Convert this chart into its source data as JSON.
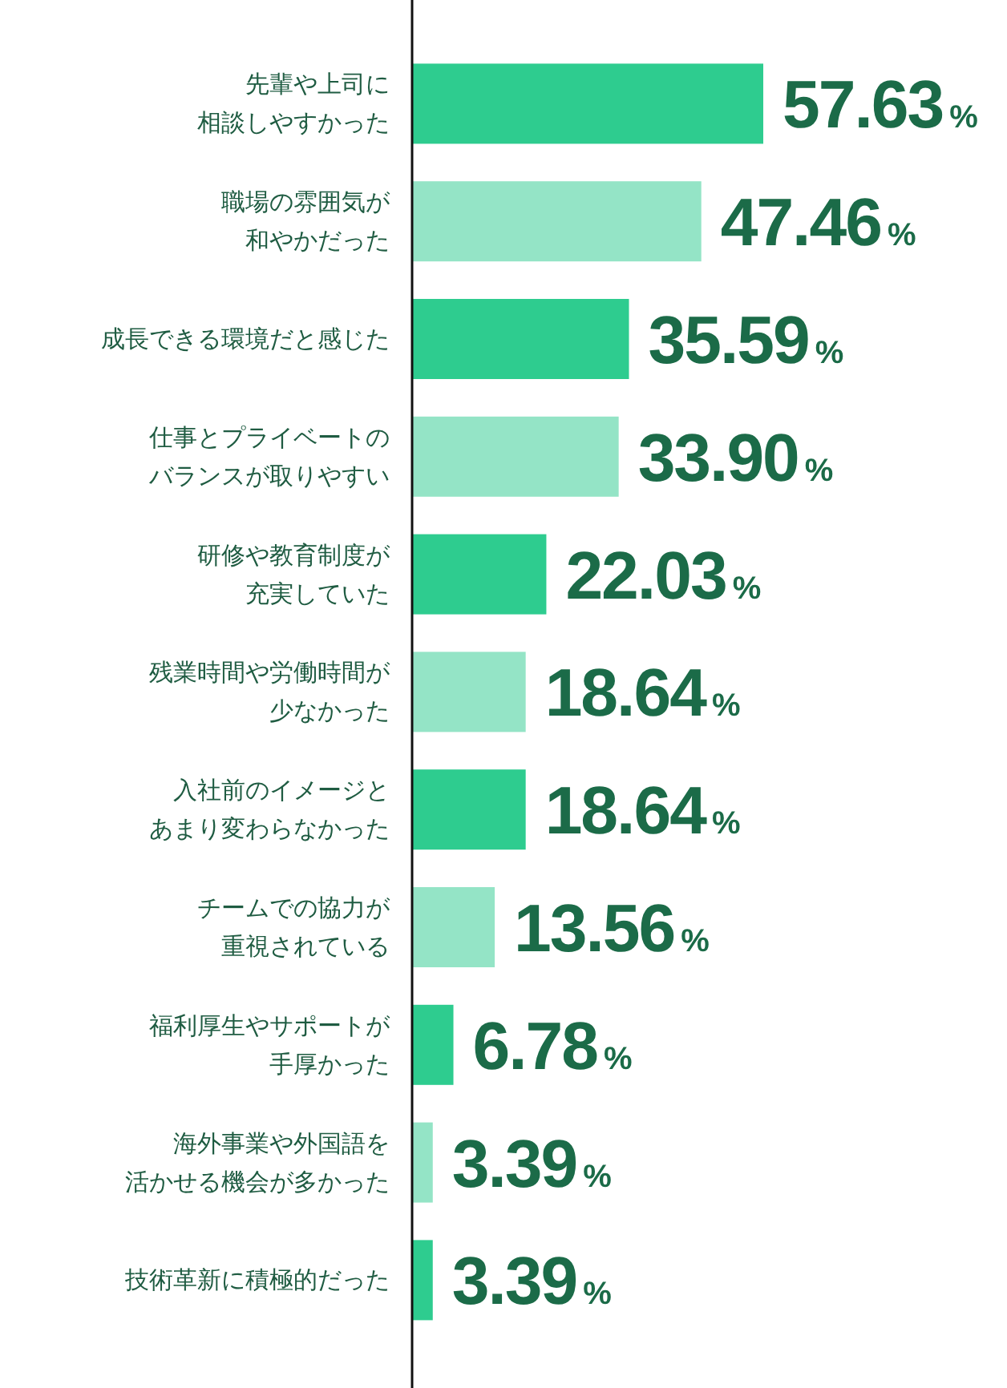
{
  "chart_data": {
    "type": "bar",
    "orientation": "horizontal",
    "categories": [
      "先輩や上司に相談しやすかった",
      "職場の雰囲気が和やかだった",
      "成長できる環境だと感じた",
      "仕事とプライベートのバランスが取りやすい",
      "研修や教育制度が充実していた",
      "残業時間や労働時間が少なかった",
      "入社前のイメージとあまり変わらなかった",
      "チームでの協力が重視されている",
      "福利厚生やサポートが手厚かった",
      "海外事業や外国語を活かせる機会が多かった",
      "技術革新に積極的だった"
    ],
    "values": [
      57.63,
      47.46,
      35.59,
      33.9,
      22.03,
      18.64,
      18.64,
      13.56,
      6.78,
      3.39,
      3.39
    ],
    "colors": [
      "#2ecc8f",
      "#94e4c6",
      "#2ecc8f",
      "#94e4c6",
      "#2ecc8f",
      "#94e4c6",
      "#2ecc8f",
      "#94e4c6",
      "#2ecc8f",
      "#94e4c6",
      "#2ecc8f"
    ],
    "value_labels": [
      "57.63%",
      "47.46%",
      "35.59%",
      "33.90%",
      "22.03%",
      "18.64%",
      "18.64%",
      "13.56%",
      "6.78%",
      "3.39%",
      "3.39%"
    ]
  }
}
